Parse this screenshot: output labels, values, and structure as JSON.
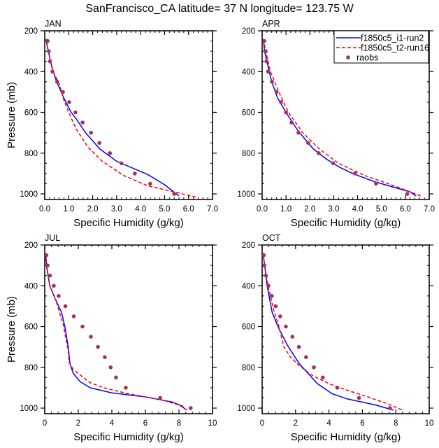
{
  "title": "SanFrancisco_CA  latitude= 37 N longitude= 123.75 W",
  "colors": {
    "series_model1": "#0000ff",
    "series_model2": "#ff0000",
    "series_obs": "#a3305f"
  },
  "chart_data": [
    {
      "type": "line",
      "panel": "JAN",
      "title": "JAN",
      "xlabel": "Specific Humidity (g/kg)",
      "ylabel": "Pressure (mb)",
      "xlim": [
        0,
        7
      ],
      "ylim": [
        200,
        1025
      ],
      "y_reversed": true,
      "xticks": [
        "0.0",
        "1.0",
        "2.0",
        "3.0",
        "4.0",
        "5.0",
        "6.0",
        "7.0"
      ],
      "xtick_values": [
        0,
        1,
        2,
        3,
        4,
        5,
        6,
        7
      ],
      "yticks": [
        "200",
        "400",
        "600",
        "800",
        "1000"
      ],
      "ytick_values": [
        200,
        400,
        600,
        800,
        1000
      ],
      "legend": null,
      "series": [
        {
          "name": "f1850c5_i1-run2",
          "style": "solid",
          "points": [
            [
              0.05,
              240
            ],
            [
              0.15,
              300
            ],
            [
              0.3,
              380
            ],
            [
              0.5,
              450
            ],
            [
              0.8,
              530
            ],
            [
              1.1,
              600
            ],
            [
              1.3,
              630
            ],
            [
              1.7,
              700
            ],
            [
              2.3,
              780
            ],
            [
              3.0,
              840
            ],
            [
              3.8,
              880
            ],
            [
              4.3,
              905
            ],
            [
              5.0,
              955
            ],
            [
              5.6,
              1010
            ]
          ]
        },
        {
          "name": "f1850c5_t2-run16",
          "style": "dashed",
          "points": [
            [
              0.05,
              240
            ],
            [
              0.15,
              300
            ],
            [
              0.35,
              400
            ],
            [
              0.6,
              460
            ],
            [
              0.8,
              540
            ],
            [
              1.0,
              600
            ],
            [
              1.3,
              680
            ],
            [
              1.8,
              770
            ],
            [
              2.4,
              840
            ],
            [
              3.3,
              910
            ],
            [
              4.3,
              960
            ],
            [
              5.2,
              985
            ],
            [
              6.3,
              1015
            ]
          ]
        },
        {
          "name": "raobs",
          "style": "markers",
          "points": [
            [
              0.12,
              250
            ],
            [
              0.17,
              300
            ],
            [
              0.22,
              350
            ],
            [
              0.32,
              400
            ],
            [
              0.52,
              450
            ],
            [
              0.76,
              500
            ],
            [
              1.02,
              550
            ],
            [
              1.28,
              600
            ],
            [
              1.58,
              650
            ],
            [
              1.93,
              700
            ],
            [
              2.28,
              750
            ],
            [
              2.72,
              800
            ],
            [
              3.2,
              850
            ],
            [
              3.76,
              900
            ],
            [
              4.4,
              950
            ],
            [
              5.4,
              1000
            ]
          ]
        }
      ]
    },
    {
      "type": "line",
      "panel": "APR",
      "title": "APR",
      "xlabel": "Specific Humidity (g/kg)",
      "ylabel": "",
      "xlim": [
        0,
        7
      ],
      "ylim": [
        200,
        1025
      ],
      "y_reversed": true,
      "xticks": [
        "0.0",
        "1.0",
        "2.0",
        "3.0",
        "4.0",
        "5.0",
        "6.0",
        "7.0"
      ],
      "xtick_values": [
        0,
        1,
        2,
        3,
        4,
        5,
        6,
        7
      ],
      "yticks": [
        "200",
        "400",
        "600",
        "800",
        "1000"
      ],
      "ytick_values": [
        200,
        400,
        600,
        800,
        1000
      ],
      "legend": {
        "placement": "top-right",
        "entries": [
          "f1850c5_i1-run2",
          "f1850c5_t2-run16",
          "raobs"
        ]
      },
      "series": [
        {
          "name": "f1850c5_i1-run2",
          "style": "solid",
          "points": [
            [
              0.05,
              240
            ],
            [
              0.1,
              300
            ],
            [
              0.3,
              400
            ],
            [
              0.4,
              450
            ],
            [
              0.65,
              530
            ],
            [
              1.0,
              600
            ],
            [
              1.5,
              690
            ],
            [
              2.15,
              780
            ],
            [
              2.7,
              830
            ],
            [
              3.25,
              870
            ],
            [
              3.8,
              900
            ],
            [
              4.7,
              940
            ],
            [
              6.2,
              990
            ],
            [
              6.45,
              1010
            ]
          ]
        },
        {
          "name": "f1850c5_t2-run16",
          "style": "dashed",
          "points": [
            [
              0.05,
              240
            ],
            [
              0.15,
              300
            ],
            [
              0.35,
              400
            ],
            [
              0.7,
              500
            ],
            [
              1.1,
              600
            ],
            [
              1.7,
              700
            ],
            [
              2.4,
              780
            ],
            [
              3.2,
              850
            ],
            [
              4.3,
              910
            ],
            [
              5.4,
              955
            ],
            [
              6.2,
              990
            ],
            [
              6.7,
              1012
            ]
          ]
        },
        {
          "name": "raobs",
          "style": "markers",
          "points": [
            [
              0.09,
              250
            ],
            [
              0.15,
              300
            ],
            [
              0.18,
              350
            ],
            [
              0.25,
              400
            ],
            [
              0.41,
              450
            ],
            [
              0.6,
              500
            ],
            [
              0.79,
              550
            ],
            [
              1.0,
              600
            ],
            [
              1.23,
              650
            ],
            [
              1.52,
              700
            ],
            [
              1.93,
              750
            ],
            [
              2.37,
              800
            ],
            [
              2.98,
              850
            ],
            [
              3.89,
              900
            ],
            [
              4.77,
              950
            ],
            [
              6.08,
              1000
            ]
          ]
        }
      ]
    },
    {
      "type": "line",
      "panel": "JUL",
      "title": "JUL",
      "xlabel": "Specific Humidity (g/kg)",
      "ylabel": "Pressure (mb)",
      "xlim": [
        0,
        10
      ],
      "ylim": [
        200,
        1025
      ],
      "y_reversed": true,
      "xticks": [
        "0",
        "2",
        "4",
        "6",
        "8",
        "10"
      ],
      "xtick_values": [
        0,
        2,
        4,
        6,
        8,
        10
      ],
      "yticks": [
        "200",
        "400",
        "600",
        "800",
        "1000"
      ],
      "ytick_values": [
        200,
        400,
        600,
        800,
        1000
      ],
      "legend": null,
      "series": [
        {
          "name": "f1850c5_i1-run2",
          "style": "solid",
          "points": [
            [
              0.05,
              240
            ],
            [
              0.1,
              300
            ],
            [
              0.3,
              400
            ],
            [
              0.6,
              460
            ],
            [
              1.0,
              530
            ],
            [
              1.2,
              600
            ],
            [
              1.4,
              700
            ],
            [
              1.5,
              780
            ],
            [
              1.7,
              830
            ],
            [
              2.1,
              870
            ],
            [
              2.7,
              900
            ],
            [
              4.0,
              925
            ],
            [
              6.0,
              945
            ],
            [
              7.6,
              970
            ],
            [
              8.2,
              990
            ],
            [
              8.35,
              1005
            ]
          ]
        },
        {
          "name": "f1850c5_t2-run16",
          "style": "dashed",
          "points": [
            [
              0.05,
              240
            ],
            [
              0.15,
              320
            ],
            [
              0.3,
              400
            ],
            [
              0.7,
              480
            ],
            [
              1.1,
              590
            ],
            [
              1.4,
              720
            ],
            [
              1.45,
              775
            ],
            [
              1.7,
              810
            ],
            [
              2.3,
              850
            ],
            [
              2.7,
              875
            ],
            [
              3.5,
              900
            ],
            [
              5.0,
              930
            ],
            [
              7.0,
              960
            ],
            [
              8.0,
              985
            ],
            [
              8.5,
              1010
            ]
          ]
        },
        {
          "name": "raobs",
          "style": "markers",
          "points": [
            [
              0.1,
              250
            ],
            [
              0.17,
              300
            ],
            [
              0.31,
              350
            ],
            [
              0.54,
              400
            ],
            [
              0.83,
              450
            ],
            [
              1.23,
              500
            ],
            [
              1.73,
              550
            ],
            [
              2.25,
              600
            ],
            [
              2.75,
              650
            ],
            [
              3.17,
              700
            ],
            [
              3.58,
              750
            ],
            [
              3.93,
              800
            ],
            [
              4.25,
              850
            ],
            [
              4.83,
              900
            ],
            [
              6.88,
              950
            ],
            [
              8.7,
              1000
            ]
          ]
        }
      ]
    },
    {
      "type": "line",
      "panel": "OCT",
      "title": "OCT",
      "xlabel": "Specific Humidity (g/kg)",
      "ylabel": "",
      "xlim": [
        0,
        10
      ],
      "ylim": [
        200,
        1025
      ],
      "y_reversed": true,
      "xticks": [
        "0",
        "2",
        "4",
        "6",
        "8",
        "10"
      ],
      "xtick_values": [
        0,
        2,
        4,
        6,
        8,
        10
      ],
      "yticks": [
        "200",
        "400",
        "600",
        "800",
        "1000"
      ],
      "ytick_values": [
        200,
        400,
        600,
        800,
        1000
      ],
      "legend": null,
      "series": [
        {
          "name": "f1850c5_i1-run2",
          "style": "solid",
          "points": [
            [
              0.05,
              240
            ],
            [
              0.15,
              300
            ],
            [
              0.3,
              400
            ],
            [
              0.6,
              530
            ],
            [
              1.0,
              610
            ],
            [
              1.5,
              690
            ],
            [
              2.2,
              780
            ],
            [
              3.3,
              880
            ],
            [
              4.2,
              930
            ],
            [
              5.1,
              955
            ],
            [
              6.8,
              985
            ],
            [
              7.85,
              1010
            ]
          ]
        },
        {
          "name": "f1850c5_t2-run16",
          "style": "dashed",
          "points": [
            [
              0.05,
              240
            ],
            [
              0.15,
              300
            ],
            [
              0.35,
              400
            ],
            [
              0.7,
              520
            ],
            [
              1.0,
              600
            ],
            [
              1.3,
              700
            ],
            [
              1.7,
              750
            ],
            [
              2.2,
              790
            ],
            [
              3.0,
              840
            ],
            [
              4.0,
              880
            ],
            [
              5.0,
              910
            ],
            [
              6.5,
              950
            ],
            [
              7.7,
              985
            ],
            [
              8.4,
              1010
            ]
          ]
        },
        {
          "name": "raobs",
          "style": "markers",
          "points": [
            [
              0.1,
              250
            ],
            [
              0.13,
              300
            ],
            [
              0.23,
              350
            ],
            [
              0.38,
              400
            ],
            [
              0.58,
              450
            ],
            [
              0.81,
              500
            ],
            [
              1.08,
              550
            ],
            [
              1.42,
              600
            ],
            [
              1.81,
              650
            ],
            [
              2.2,
              700
            ],
            [
              2.63,
              750
            ],
            [
              3.1,
              800
            ],
            [
              3.63,
              850
            ],
            [
              4.5,
              900
            ],
            [
              5.8,
              950
            ],
            [
              7.65,
              1000
            ]
          ]
        }
      ]
    }
  ]
}
